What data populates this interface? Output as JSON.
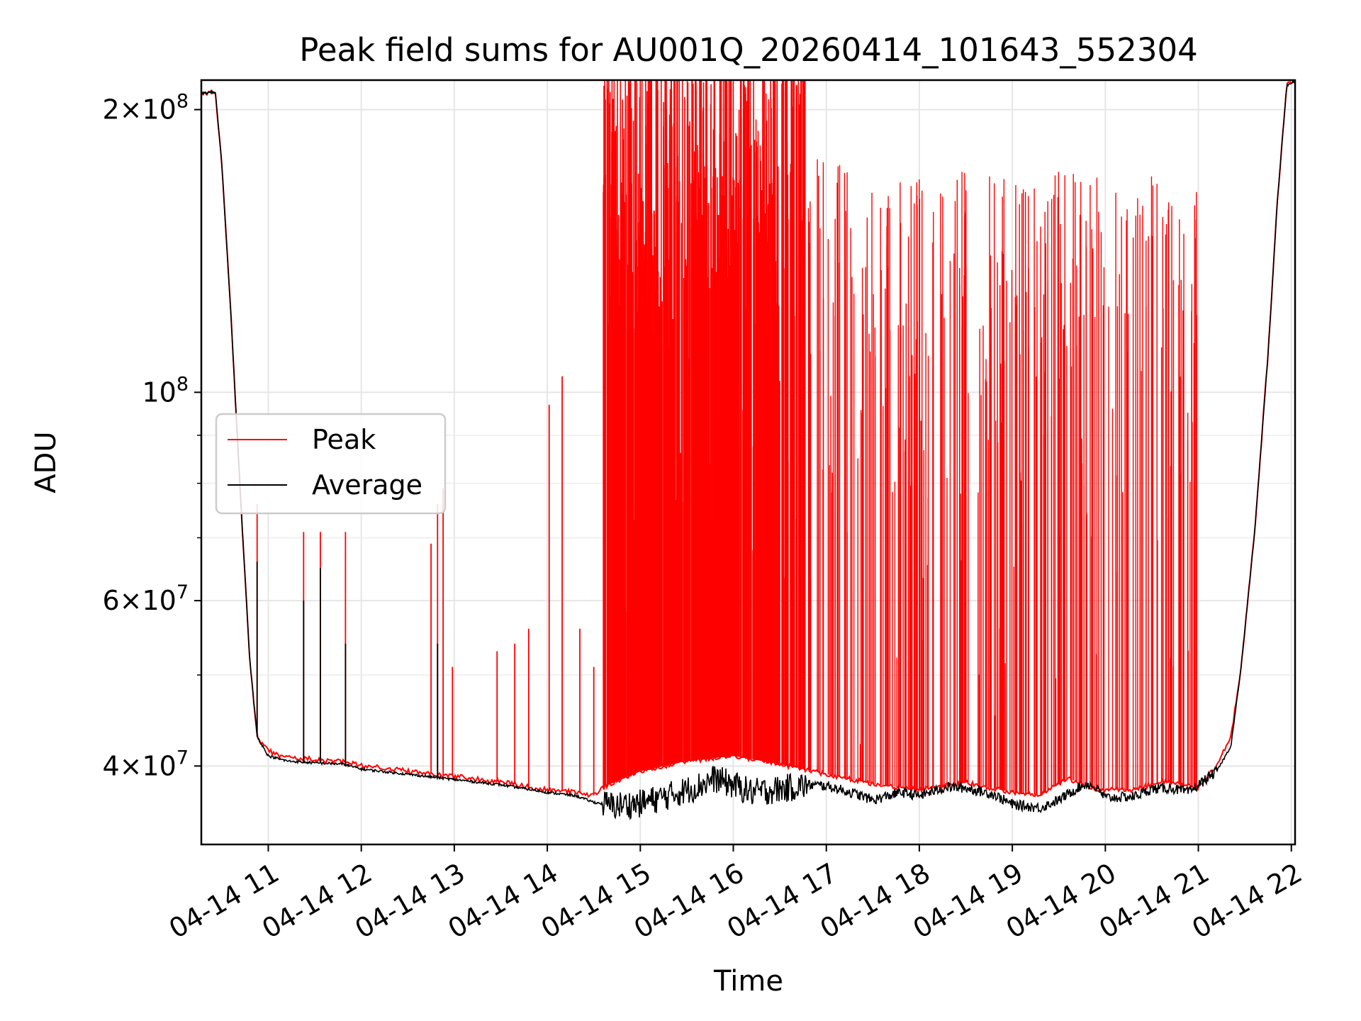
{
  "chart_data": {
    "type": "line",
    "title": "Peak field sums for AU001Q_20260414_101643_552304",
    "xlabel": "Time",
    "ylabel": "ADU",
    "yscale": "log",
    "ylim": [
      33000000,
      215000000
    ],
    "xlim_hours": [
      10.28,
      22.04
    ],
    "grid": true,
    "legend_position": "center-left",
    "x_tick_labels": [
      "04-14 11",
      "04-14 12",
      "04-14 13",
      "04-14 14",
      "04-14 15",
      "04-14 16",
      "04-14 17",
      "04-14 18",
      "04-14 19",
      "04-14 20",
      "04-14 21",
      "04-14 22"
    ],
    "x_tick_hours": [
      11,
      12,
      13,
      14,
      15,
      16,
      17,
      18,
      19,
      20,
      21,
      22
    ],
    "y_major_ticks": [
      {
        "value": 40000000,
        "mantissa": "4",
        "exponent": "7"
      },
      {
        "value": 60000000,
        "mantissa": "6",
        "exponent": "7"
      },
      {
        "value": 100000000,
        "mantissa": "",
        "exponent": "8"
      },
      {
        "value": 200000000,
        "mantissa": "2",
        "exponent": "8"
      }
    ],
    "y_minor_ticks": [
      50000000,
      70000000,
      80000000,
      90000000
    ],
    "series": [
      {
        "name": "Peak",
        "color": "#ff0000",
        "x_hours": [
          10.28,
          10.43,
          10.5,
          10.6,
          10.7,
          10.8,
          10.88,
          11.0,
          11.2,
          11.5,
          11.8,
          12.0,
          12.5,
          13.0,
          13.5,
          14.0,
          14.3,
          14.5,
          14.6,
          15.0,
          15.5,
          16.0,
          16.5,
          17.0,
          17.5,
          18.0,
          18.5,
          19.0,
          19.3,
          19.6,
          19.9,
          20.3,
          20.6,
          21.0,
          21.2,
          21.35,
          21.45,
          21.6,
          21.75,
          21.85,
          21.95,
          22.04
        ],
        "values": [
          208000000,
          209000000,
          175000000,
          120000000,
          78000000,
          52000000,
          43000000,
          41500000,
          40800000,
          40700000,
          40400000,
          40100000,
          39500000,
          39000000,
          38500000,
          37700000,
          37500000,
          37200000,
          38000000,
          39500000,
          40500000,
          41000000,
          40200000,
          39200000,
          38300000,
          37700000,
          38400000,
          37500000,
          37200000,
          38800000,
          37800000,
          37700000,
          38500000,
          38000000,
          40000000,
          43000000,
          50000000,
          70000000,
          110000000,
          160000000,
          212000000,
          215000000
        ],
        "spikes": {
          "band_dense_hours": [
            14.6,
            16.8
          ],
          "band_moderate_hours": [
            16.8,
            21.0
          ],
          "isolated": [
            {
              "hour": 10.88,
              "value": 76000000
            },
            {
              "hour": 11.38,
              "value": 71000000
            },
            {
              "hour": 11.56,
              "value": 71000000
            },
            {
              "hour": 11.83,
              "value": 71000000
            },
            {
              "hour": 12.75,
              "value": 69000000
            },
            {
              "hour": 12.82,
              "value": 76000000
            },
            {
              "hour": 12.88,
              "value": 79000000
            },
            {
              "hour": 12.98,
              "value": 51000000
            },
            {
              "hour": 13.46,
              "value": 53000000
            },
            {
              "hour": 13.65,
              "value": 54000000
            },
            {
              "hour": 13.8,
              "value": 56000000
            },
            {
              "hour": 14.02,
              "value": 97000000
            },
            {
              "hour": 14.16,
              "value": 104000000
            },
            {
              "hour": 14.35,
              "value": 56000000
            },
            {
              "hour": 14.5,
              "value": 51000000
            }
          ]
        }
      },
      {
        "name": "Average",
        "color": "#000000",
        "x_hours": [
          10.28,
          10.43,
          10.5,
          10.6,
          10.7,
          10.8,
          10.88,
          11.0,
          11.2,
          11.5,
          11.8,
          12.0,
          12.5,
          13.0,
          13.5,
          14.0,
          14.3,
          14.5,
          14.7,
          15.0,
          15.3,
          15.6,
          15.8,
          16.0,
          16.2,
          16.5,
          16.8,
          17.0,
          17.3,
          17.5,
          17.8,
          18.0,
          18.3,
          18.5,
          18.8,
          19.0,
          19.3,
          19.5,
          19.7,
          19.8,
          19.9,
          20.0,
          20.3,
          20.5,
          20.7,
          20.9,
          21.0,
          21.2,
          21.35,
          21.45,
          21.6,
          21.75,
          21.85,
          21.95,
          22.04
        ],
        "values": [
          208000000,
          209000000,
          175000000,
          120000000,
          78000000,
          52000000,
          43000000,
          41000000,
          40500000,
          40300000,
          40200000,
          39700000,
          39200000,
          38700000,
          38200000,
          37500000,
          37200000,
          36600000,
          36300000,
          36500000,
          37200000,
          38000000,
          38800000,
          38200000,
          37500000,
          37800000,
          38200000,
          38100000,
          37400000,
          36800000,
          37500000,
          37200000,
          38000000,
          37900000,
          37300000,
          36400000,
          36100000,
          36800000,
          37900000,
          38300000,
          37900000,
          37000000,
          37100000,
          37800000,
          37900000,
          37500000,
          38200000,
          39500000,
          42000000,
          50000000,
          70000000,
          110000000,
          160000000,
          212000000,
          215000000
        ],
        "spikes": [
          {
            "hour": 10.88,
            "value": 66000000
          },
          {
            "hour": 11.38,
            "value": 60000000
          },
          {
            "hour": 11.56,
            "value": 65000000
          },
          {
            "hour": 11.83,
            "value": 54000000
          },
          {
            "hour": 12.82,
            "value": 54000000
          }
        ]
      }
    ]
  }
}
